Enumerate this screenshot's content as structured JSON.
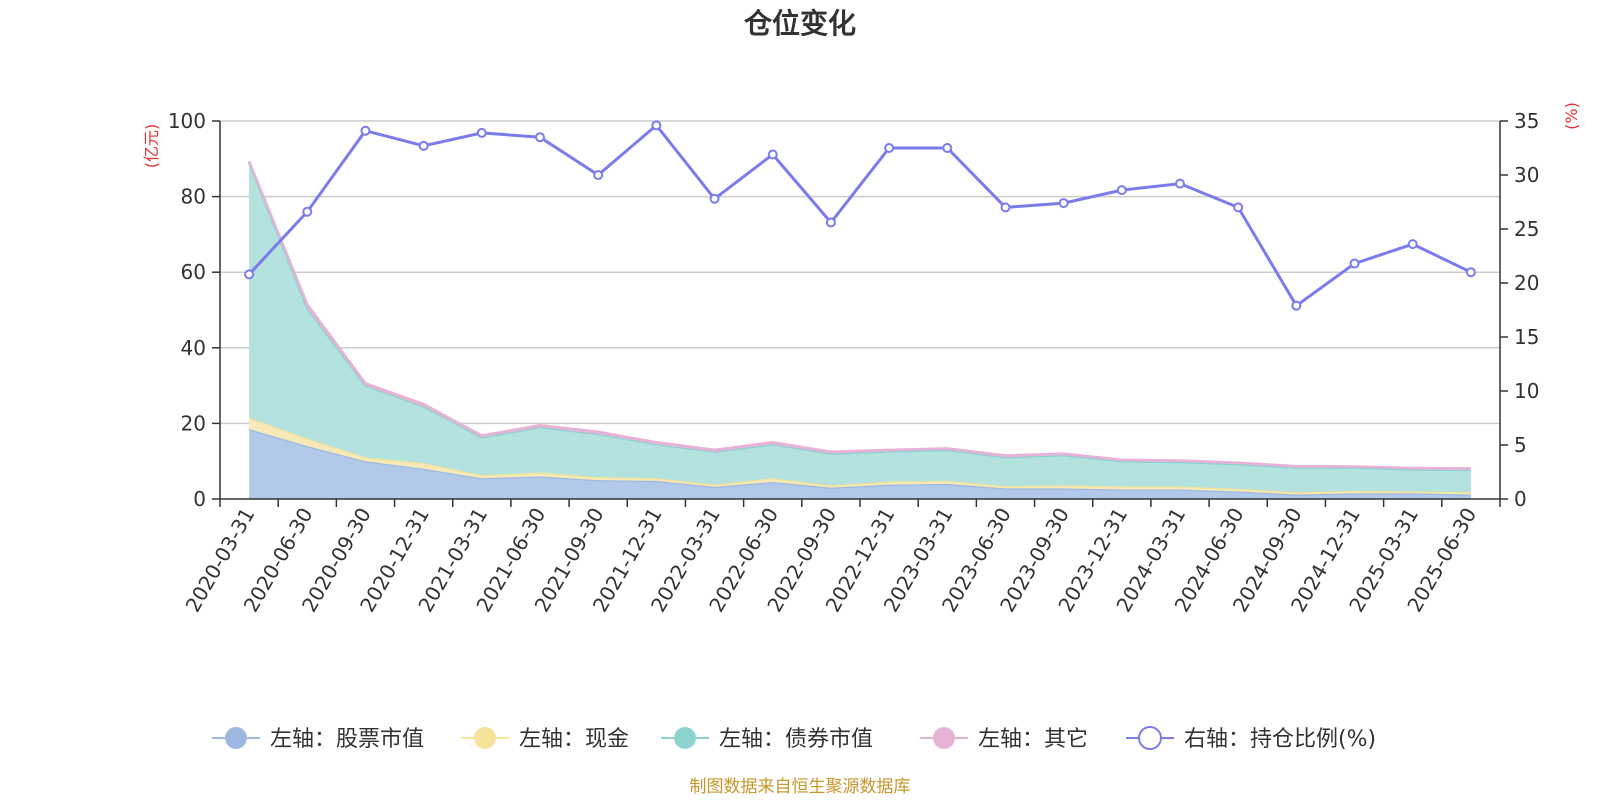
{
  "chart_data": {
    "type": "area",
    "title": "仓位变化",
    "categories": [
      "2020-03-31",
      "2020-06-30",
      "2020-09-30",
      "2020-12-31",
      "2021-03-31",
      "2021-06-30",
      "2021-09-30",
      "2021-12-31",
      "2022-03-31",
      "2022-06-30",
      "2022-09-30",
      "2022-12-31",
      "2023-03-31",
      "2023-06-30",
      "2023-09-30",
      "2023-12-31",
      "2024-03-31",
      "2024-06-30",
      "2024-09-30",
      "2024-12-31",
      "2025-03-31",
      "2025-06-30"
    ],
    "left_axis": {
      "unit": "(亿元)",
      "ylim": [
        0,
        100
      ],
      "ticks": [
        "0",
        "20",
        "40",
        "60",
        "80",
        "100"
      ]
    },
    "right_axis": {
      "unit": "(%)",
      "ylim": [
        0,
        35
      ],
      "ticks": [
        "0",
        "5",
        "10",
        "15",
        "20",
        "25",
        "30",
        "35"
      ]
    },
    "stacked_series": [
      {
        "name": "左轴：股票市值",
        "color": "#9db8e0",
        "fill": "#b3c9ea",
        "values": [
          18.5,
          14.0,
          10.0,
          8.0,
          5.5,
          6.0,
          5.0,
          4.8,
          3.2,
          4.5,
          3.0,
          3.8,
          4.0,
          2.8,
          2.8,
          2.5,
          2.5,
          2.0,
          1.2,
          1.5,
          1.5,
          1.2
        ]
      },
      {
        "name": "左轴：现金",
        "color": "#f5e39a",
        "fill": "#f7eab8",
        "values": [
          3.0,
          2.0,
          1.0,
          1.5,
          0.8,
          1.0,
          0.8,
          0.7,
          0.6,
          1.0,
          0.6,
          0.8,
          0.8,
          0.6,
          0.8,
          0.8,
          0.8,
          0.7,
          0.6,
          0.6,
          0.5,
          0.6
        ]
      },
      {
        "name": "左轴：债券市值",
        "color": "#8fd3d1",
        "fill": "#b3e2df",
        "values": [
          67.5,
          34.5,
          19.0,
          15.0,
          10.0,
          12.0,
          11.4,
          9.0,
          8.7,
          9.0,
          8.4,
          8.0,
          8.2,
          7.6,
          8.0,
          6.7,
          6.5,
          6.5,
          6.5,
          6.2,
          5.8,
          5.9
        ]
      },
      {
        "name": "左轴：其它",
        "color": "#e6b3d6",
        "fill": "#e6b3d6",
        "values": [
          0.4,
          1.0,
          0.6,
          0.6,
          0.5,
          0.5,
          0.6,
          0.5,
          0.5,
          0.5,
          0.5,
          0.4,
          0.4,
          0.5,
          0.4,
          0.4,
          0.4,
          0.4,
          0.4,
          0.3,
          0.4,
          0.4
        ]
      }
    ],
    "line_series": {
      "name": "右轴：持仓比例(%)",
      "color": "#7b7bec",
      "values": [
        20.8,
        26.6,
        34.1,
        32.7,
        33.9,
        33.5,
        30.0,
        34.6,
        27.8,
        31.9,
        25.6,
        32.5,
        32.5,
        27.0,
        27.4,
        28.6,
        29.2,
        27.0,
        17.9,
        21.8,
        23.6,
        21.0
      ]
    },
    "grid": true,
    "legend": "bottom-center"
  },
  "footer": {
    "source": "制图数据来自恒生聚源数据库"
  }
}
